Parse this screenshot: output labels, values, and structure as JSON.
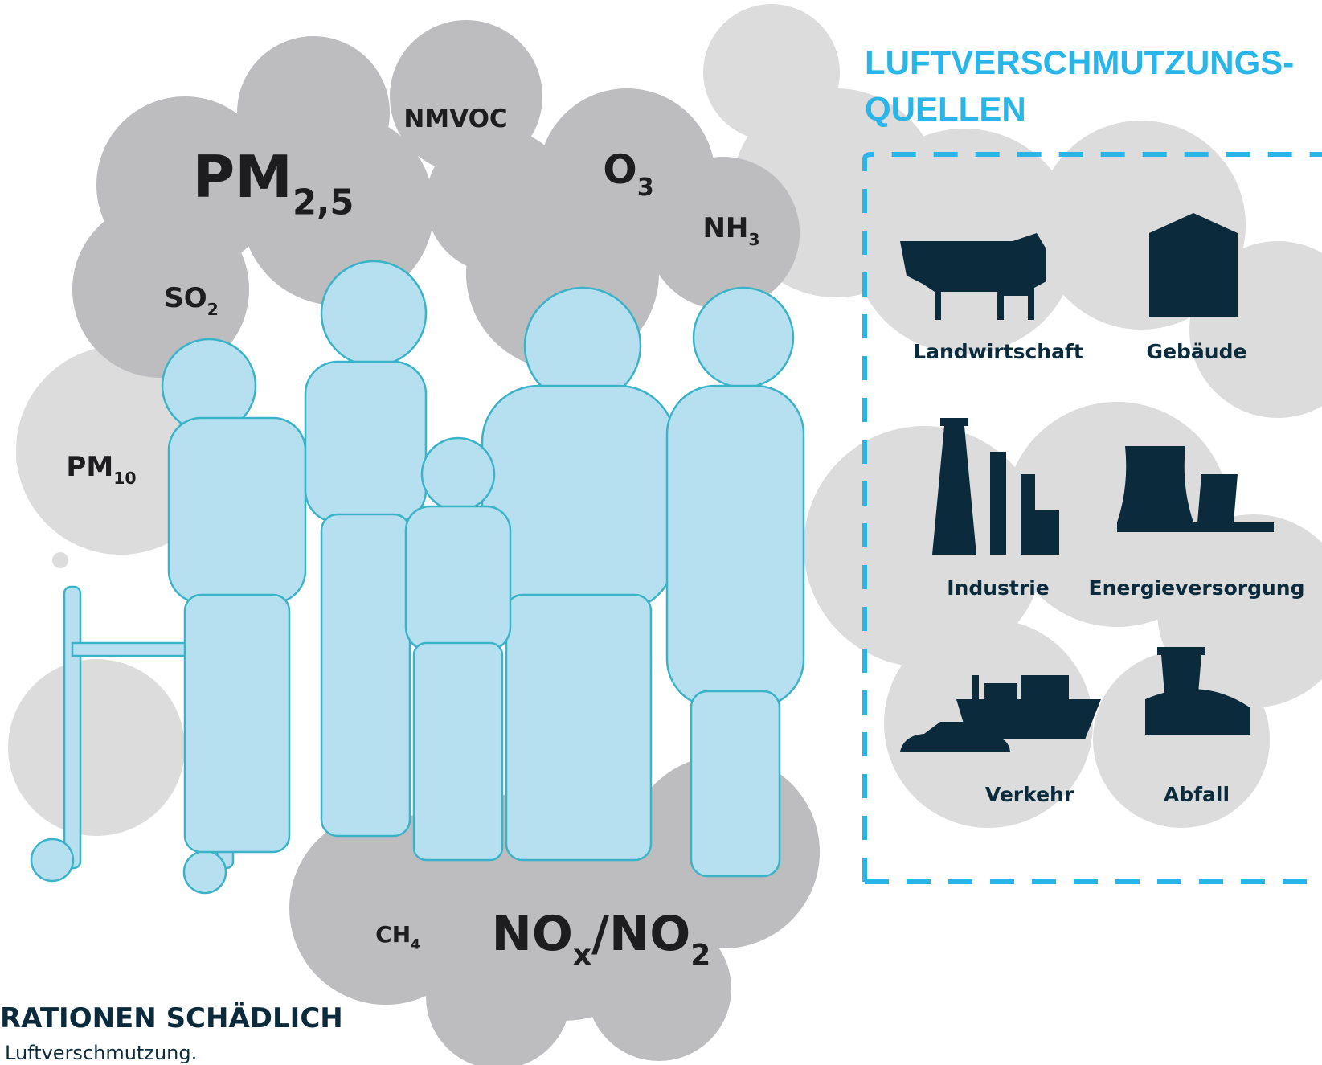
{
  "pollutants": [
    {
      "parts": [
        {
          "text": "NMVOC"
        }
      ]
    },
    {
      "parts": [
        {
          "text": "PM"
        },
        {
          "text": "2,5",
          "sub": true
        }
      ]
    },
    {
      "parts": [
        {
          "text": "SO"
        },
        {
          "text": "2",
          "sub": true
        }
      ]
    },
    {
      "parts": [
        {
          "text": "PM"
        },
        {
          "text": "10",
          "sub": true
        }
      ]
    },
    {
      "parts": [
        {
          "text": "O"
        },
        {
          "text": "3",
          "sub": true
        }
      ]
    },
    {
      "parts": [
        {
          "text": "NH"
        },
        {
          "text": "3",
          "sub": true
        }
      ]
    },
    {
      "parts": [
        {
          "text": "CH"
        },
        {
          "text": "4",
          "sub": true
        }
      ]
    },
    {
      "parts": [
        {
          "text": "NO"
        },
        {
          "text": "x",
          "sub": true
        },
        {
          "text": "/NO"
        },
        {
          "text": "2",
          "sub": true
        }
      ]
    }
  ],
  "sources": {
    "title": [
      "LUFTVERSCHMUTZUNGS-",
      "QUELLEN"
    ],
    "items": [
      "Landwirtschaft",
      "Gebäude",
      "Industrie",
      "Energieversorgung",
      "Verkehr",
      "Abfall"
    ]
  },
  "footer": {
    "heading": "RATIONEN SCHÄDLICH",
    "text": "Luftverschmutzung."
  }
}
